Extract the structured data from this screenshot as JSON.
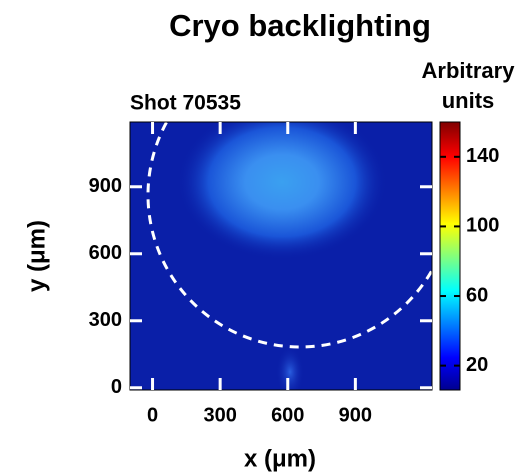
{
  "chart_data": {
    "type": "heatmap",
    "title": "Cryo backlighting",
    "subtitle": "Shot 70535",
    "xlabel": "x (μm)",
    "ylabel": "y (μm)",
    "xlim": [
      -100,
      1240
    ],
    "xticks": [
      0,
      300,
      600,
      900
    ],
    "ylim": [
      -10,
      1190
    ],
    "yticks": [
      0,
      300,
      600,
      900
    ],
    "colorbar": {
      "label": [
        "Arbitrary",
        "units"
      ],
      "lim": [
        6,
        160
      ],
      "ticks": [
        20,
        60,
        100,
        140
      ]
    }
  }
}
